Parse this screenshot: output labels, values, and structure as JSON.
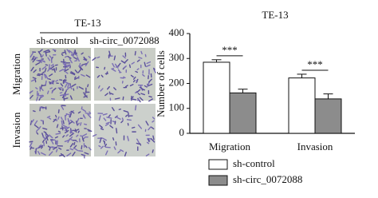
{
  "image_panel": {
    "title": "TE-13",
    "columns": [
      "sh-control",
      "sh-circ_0072088"
    ],
    "rows": [
      "Migration",
      "Invasion"
    ]
  },
  "chart_data": {
    "type": "bar",
    "title": "TE-13",
    "ylabel": "Number of cells",
    "categories": [
      "Migration",
      "Invasion"
    ],
    "series": [
      {
        "name": "sh-control",
        "color": "#ffffff",
        "values": [
          285,
          222
        ],
        "errors": [
          10,
          15
        ]
      },
      {
        "name": "sh-circ_0072088",
        "color": "#8c8c8c",
        "values": [
          162,
          138
        ],
        "errors": [
          15,
          20
        ]
      }
    ],
    "annotations": [
      "***",
      "***"
    ],
    "ylim": [
      0,
      400
    ],
    "yticks": [
      0,
      100,
      200,
      300,
      400
    ],
    "grid": false
  }
}
